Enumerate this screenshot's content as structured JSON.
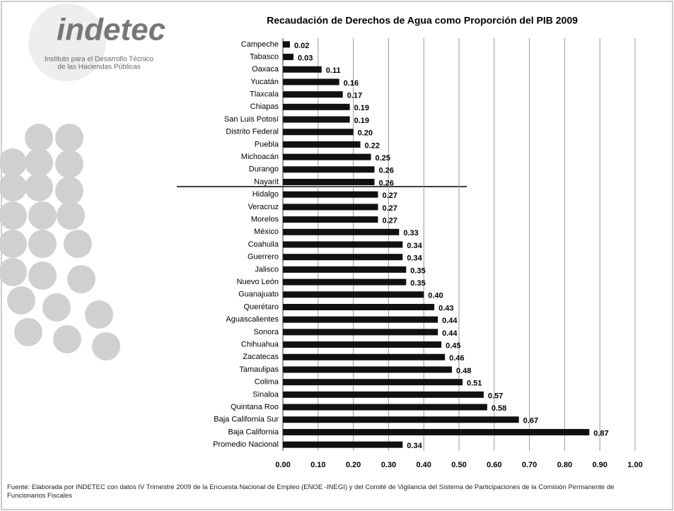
{
  "logo": {
    "name": "indetec",
    "line1": "Instituto para el Desarrollo Técnico",
    "line2": "de las Haciendas Públicas"
  },
  "footnote": "Fuente: Elaborada por INDETEC con datos IV Trimestre  2009 de la Encuesta Nacional de Empleo (ENOE -INEGI)  y del Comité de Vigilancia del Sistema de Participaciones de la Comisión Permanente de Funcionarios Fiscales",
  "chart_data": {
    "type": "bar",
    "orientation": "horizontal",
    "title": "Recaudación de Derechos de Agua como Proporción del PIB 2009",
    "categories": [
      "Campeche",
      "Tabasco",
      "Oaxaca",
      "Yucatán",
      "Tlaxcala",
      "Chiapas",
      "San Luis Potosí",
      "Distrito Federal",
      "Puebla",
      "Michoacán",
      "Durango",
      "Nayarit",
      "Hidalgo",
      "Veracruz",
      "Morelos",
      "México",
      "Coahuila",
      "Guerrero",
      "Jalisco",
      "Nuevo León",
      "Guanajuato",
      "Querétaro",
      "Aguascalientes",
      "Sonora",
      "Chihuahua",
      "Zacatecas",
      "Tamaulipas",
      "Colima",
      "Sinaloa",
      "Quintana Roo",
      "Baja California Sur",
      "Baja California",
      "Promedio Nacional"
    ],
    "values": [
      0.02,
      0.03,
      0.11,
      0.16,
      0.17,
      0.19,
      0.19,
      0.2,
      0.22,
      0.25,
      0.26,
      0.26,
      0.27,
      0.27,
      0.27,
      0.33,
      0.34,
      0.34,
      0.35,
      0.35,
      0.4,
      0.43,
      0.44,
      0.44,
      0.45,
      0.46,
      0.48,
      0.51,
      0.57,
      0.58,
      0.67,
      0.87,
      0.34
    ],
    "value_labels": [
      "0.02",
      "0.03",
      "0.11",
      "0.16",
      "0.17",
      "0.19",
      "0.19",
      "0.20",
      "0.22",
      "0.25",
      "0.26",
      "0.26",
      "0.27",
      "0.27",
      "0.27",
      "0.33",
      "0.34",
      "0.34",
      "0.35",
      "0.35",
      "0.40",
      "0.43",
      "0.44",
      "0.44",
      "0.45",
      "0.46",
      "0.48",
      "0.51",
      "0.57",
      "0.58",
      "0.67",
      "0.87",
      "0.34"
    ],
    "color": "#111111",
    "xlim": [
      0,
      1
    ],
    "xticks": [
      {
        "value": 0,
        "label": "0.00"
      },
      {
        "value": 0.1,
        "label": "0.10"
      },
      {
        "value": 0.2,
        "label": "0.20"
      },
      {
        "value": 0.3,
        "label": "0.30"
      },
      {
        "value": 0.4,
        "label": "0.40"
      },
      {
        "value": 0.5,
        "label": "0.50"
      },
      {
        "value": 0.6,
        "label": "0.60"
      },
      {
        "value": 0.7,
        "label": "0.70"
      },
      {
        "value": 0.8,
        "label": "0.80"
      },
      {
        "value": 0.9,
        "label": "0.90"
      },
      {
        "value": 1,
        "label": "1.00"
      }
    ],
    "grid": true
  }
}
